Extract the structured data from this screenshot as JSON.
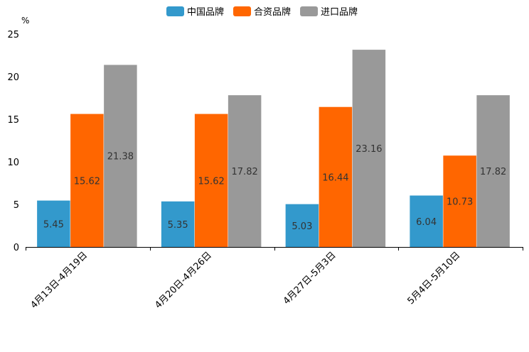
{
  "chart_data": {
    "type": "bar",
    "unit": "%",
    "categories": [
      "4月13日-4月19日",
      "4月20日-4月26日",
      "4月27日-5月3日",
      "5月4日-5月10日"
    ],
    "series": [
      {
        "name": "中国品牌",
        "color": "#3399cc",
        "values": [
          5.45,
          5.35,
          5.03,
          6.04
        ]
      },
      {
        "name": "合资品牌",
        "color": "#ff6600",
        "values": [
          15.62,
          15.62,
          16.44,
          10.73
        ]
      },
      {
        "name": "进口品牌",
        "color": "#999999",
        "values": [
          21.38,
          17.82,
          23.16,
          17.82
        ]
      }
    ],
    "ylim": [
      0,
      25
    ],
    "yticks": [
      0,
      5,
      10,
      15,
      20,
      25
    ],
    "legend_position": "top-center",
    "grid": false
  }
}
